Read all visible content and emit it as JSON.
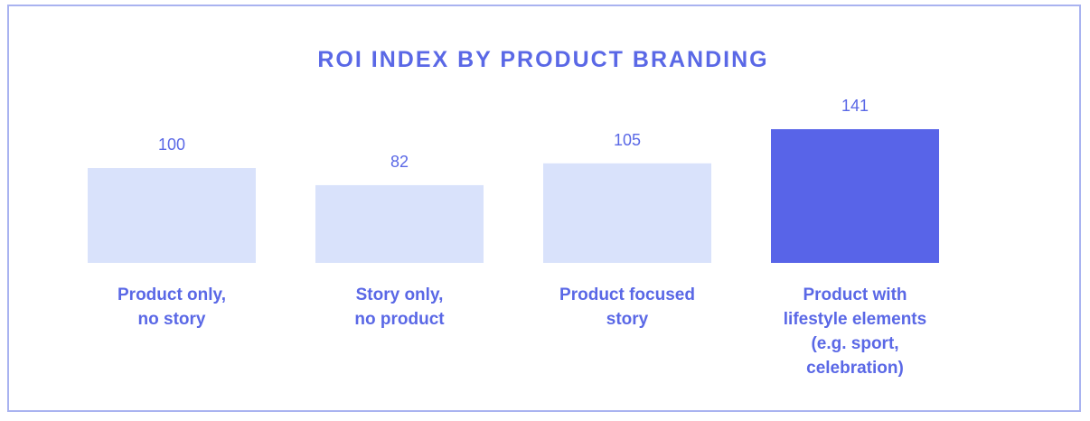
{
  "chart_data": {
    "type": "bar",
    "title": "ROI INDEX BY PRODUCT BRANDING",
    "categories": [
      [
        "Product only,",
        "no story"
      ],
      [
        "Story only,",
        "no product"
      ],
      [
        "Product focused",
        "story"
      ],
      [
        "Product with",
        "lifestyle elements",
        "(e.g. sport,",
        "celebration)"
      ]
    ],
    "values": [
      100,
      82,
      105,
      141
    ],
    "colors": [
      "#d9e2fb",
      "#d9e2fb",
      "#d9e2fb",
      "#5864e8"
    ]
  }
}
